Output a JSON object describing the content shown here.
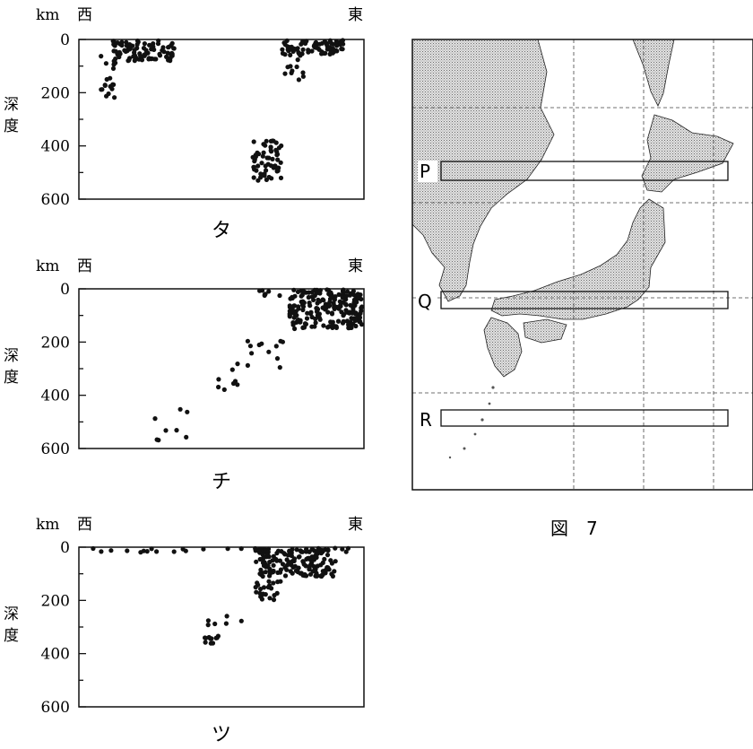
{
  "profile_charts": [
    {
      "id": "ta",
      "label": "タ",
      "unit": "km",
      "west": "西",
      "east": "東",
      "depth_label_chars": [
        "深",
        "度"
      ],
      "y_ticks": [
        "0",
        "200",
        "400",
        "600"
      ],
      "ylim": [
        0,
        600
      ],
      "clusters": [
        {
          "x": [
            0.12,
            0.34
          ],
          "y": [
            0,
            80
          ],
          "n": 90
        },
        {
          "x": [
            0.07,
            0.13
          ],
          "y": [
            60,
            220
          ],
          "n": 20
        },
        {
          "x": [
            0.71,
            0.93
          ],
          "y": [
            0,
            60
          ],
          "n": 80
        },
        {
          "x": [
            0.72,
            0.79
          ],
          "y": [
            50,
            170
          ],
          "n": 12
        },
        {
          "x": [
            0.61,
            0.71
          ],
          "y": [
            380,
            530
          ],
          "n": 60
        }
      ]
    },
    {
      "id": "chi",
      "label": "チ",
      "unit": "km",
      "west": "西",
      "east": "東",
      "depth_label_chars": [
        "深",
        "度"
      ],
      "y_ticks": [
        "0",
        "200",
        "400",
        "600"
      ],
      "ylim": [
        0,
        600
      ],
      "clusters": [
        {
          "x": [
            0.74,
            1.0
          ],
          "y": [
            0,
            150
          ],
          "n": 220
        },
        {
          "x": [
            0.62,
            0.78
          ],
          "y": [
            0,
            30
          ],
          "n": 8
        },
        {
          "x": [
            0.56,
            0.72
          ],
          "y": [
            180,
            300
          ],
          "n": 12
        },
        {
          "x": [
            0.46,
            0.58
          ],
          "y": [
            280,
            390
          ],
          "n": 8
        },
        {
          "x": [
            0.23,
            0.38
          ],
          "y": [
            440,
            570
          ],
          "n": 8
        }
      ]
    },
    {
      "id": "tsu",
      "label": "ツ",
      "unit": "km",
      "west": "西",
      "east": "東",
      "depth_label_chars": [
        "深",
        "度"
      ],
      "y_ticks": [
        "0",
        "200",
        "400",
        "600"
      ],
      "ylim": [
        0,
        600
      ],
      "clusters": [
        {
          "x": [
            0.05,
            0.95
          ],
          "y": [
            0,
            20
          ],
          "n": 40
        },
        {
          "x": [
            0.62,
            0.9
          ],
          "y": [
            0,
            110
          ],
          "n": 160
        },
        {
          "x": [
            0.62,
            0.71
          ],
          "y": [
            100,
            200
          ],
          "n": 25
        },
        {
          "x": [
            0.45,
            0.57
          ],
          "y": [
            250,
            310
          ],
          "n": 6
        },
        {
          "x": [
            0.44,
            0.49
          ],
          "y": [
            330,
            370
          ],
          "n": 12
        }
      ]
    }
  ],
  "map": {
    "boxes": [
      {
        "label": "P",
        "name": "box-p"
      },
      {
        "label": "Q",
        "name": "box-q"
      },
      {
        "label": "R",
        "name": "box-r"
      }
    ],
    "caption": "図　7",
    "colors": {
      "land": "#b8b8b8",
      "sea": "#ffffff",
      "stroke": "#111111"
    }
  }
}
